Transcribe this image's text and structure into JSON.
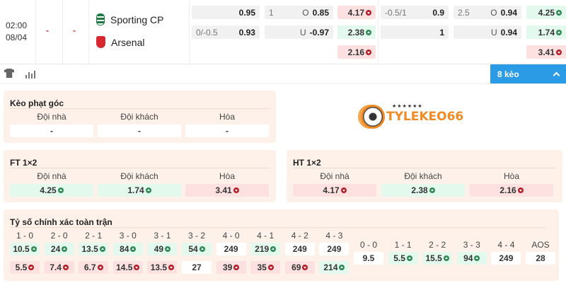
{
  "match": {
    "time": "02:00",
    "date": "08/04",
    "score_ht": "-",
    "score_ft": "-",
    "home": "Sporting CP",
    "away": "Arsenal"
  },
  "odds": {
    "hdp_ft": {
      "row1_line": "",
      "row1_val": "0.95",
      "row2_line": "0/-0.5",
      "row2_val": "0.93"
    },
    "ou_ft": {
      "row1_line": "1",
      "row1_side": "O",
      "row1_val": "0.85",
      "row2_line": "",
      "row2_side": "U",
      "row2_val": "-0.97"
    },
    "x12_ht": [
      {
        "v": "4.17",
        "t": "down"
      },
      {
        "v": "2.38",
        "t": "up"
      },
      {
        "v": "2.16",
        "t": "down"
      }
    ],
    "hdp_2": {
      "row1_line": "-0.5/1",
      "row1_val": "0.9",
      "row2_val": "1"
    },
    "ou_2": {
      "row1_line": "2.5",
      "row1_side": "O",
      "row1_val": "0.94",
      "row2_side": "U",
      "row2_val": "0.94"
    },
    "x12_ft": [
      {
        "v": "4.25",
        "t": "up"
      },
      {
        "v": "1.74",
        "t": "up"
      },
      {
        "v": "3.41",
        "t": "down"
      }
    ]
  },
  "toolbar": {
    "more_label": "8 kèo",
    "icons": [
      "shirt-icon",
      "stats-chart-icon",
      "chevron-up-icon"
    ],
    "accent": "#2b9be6"
  },
  "corner": {
    "title": "Kèo phạt góc",
    "headers": [
      "Đội nhà",
      "Đội khách",
      "Hòa"
    ],
    "values": [
      "-",
      "-",
      "-"
    ]
  },
  "logo": {
    "text": "TYLEKEO66"
  },
  "ft": {
    "title": "FT 1×2",
    "headers": [
      "Đội nhà",
      "Đội khách",
      "Hòa"
    ],
    "values": [
      {
        "v": "4.25",
        "t": "up"
      },
      {
        "v": "1.74",
        "t": "up"
      },
      {
        "v": "3.41",
        "t": "down"
      }
    ]
  },
  "ht": {
    "title": "HT 1×2",
    "headers": [
      "Đội nhà",
      "Đội khách",
      "Hòa"
    ],
    "values": [
      {
        "v": "4.17",
        "t": "down"
      },
      {
        "v": "2.38",
        "t": "up"
      },
      {
        "v": "2.16",
        "t": "down"
      }
    ]
  },
  "correct_score": {
    "title": "Tỷ số chính xác toàn trận",
    "columns": [
      {
        "score": "1 - 0",
        "home": {
          "v": "10.5",
          "t": "up"
        },
        "away": {
          "v": "5.5",
          "t": "down"
        }
      },
      {
        "score": "2 - 0",
        "home": {
          "v": "24",
          "t": "up"
        },
        "away": {
          "v": "7.4",
          "t": "down"
        }
      },
      {
        "score": "2 - 1",
        "home": {
          "v": "13.5",
          "t": "up"
        },
        "away": {
          "v": "6.7",
          "t": "down"
        }
      },
      {
        "score": "3 - 0",
        "home": {
          "v": "84",
          "t": "up"
        },
        "away": {
          "v": "14.5",
          "t": "down"
        }
      },
      {
        "score": "3 - 1",
        "home": {
          "v": "49",
          "t": "up"
        },
        "away": {
          "v": "13.5",
          "t": "down"
        }
      },
      {
        "score": "3 - 2",
        "home": {
          "v": "54",
          "t": "up"
        },
        "away": {
          "v": "27",
          "t": ""
        }
      },
      {
        "score": "4 - 0",
        "home": {
          "v": "249",
          "t": ""
        },
        "away": {
          "v": "39",
          "t": "down"
        }
      },
      {
        "score": "4 - 1",
        "home": {
          "v": "219",
          "t": "up"
        },
        "away": {
          "v": "35",
          "t": "down"
        }
      },
      {
        "score": "4 - 2",
        "home": {
          "v": "249",
          "t": ""
        },
        "away": {
          "v": "69",
          "t": "down"
        }
      },
      {
        "score": "4 - 3",
        "home": {
          "v": "249",
          "t": ""
        },
        "away": {
          "v": "214",
          "t": "up"
        }
      }
    ],
    "draws": [
      {
        "score": "0 - 0",
        "v": "9.5",
        "t": ""
      },
      {
        "score": "1 - 1",
        "v": "5.5",
        "t": "up"
      },
      {
        "score": "2 - 2",
        "v": "15.5",
        "t": "up"
      },
      {
        "score": "3 - 3",
        "v": "94",
        "t": "up"
      },
      {
        "score": "4 - 4",
        "v": "249",
        "t": ""
      },
      {
        "score": "AOS",
        "v": "28",
        "t": ""
      }
    ]
  }
}
